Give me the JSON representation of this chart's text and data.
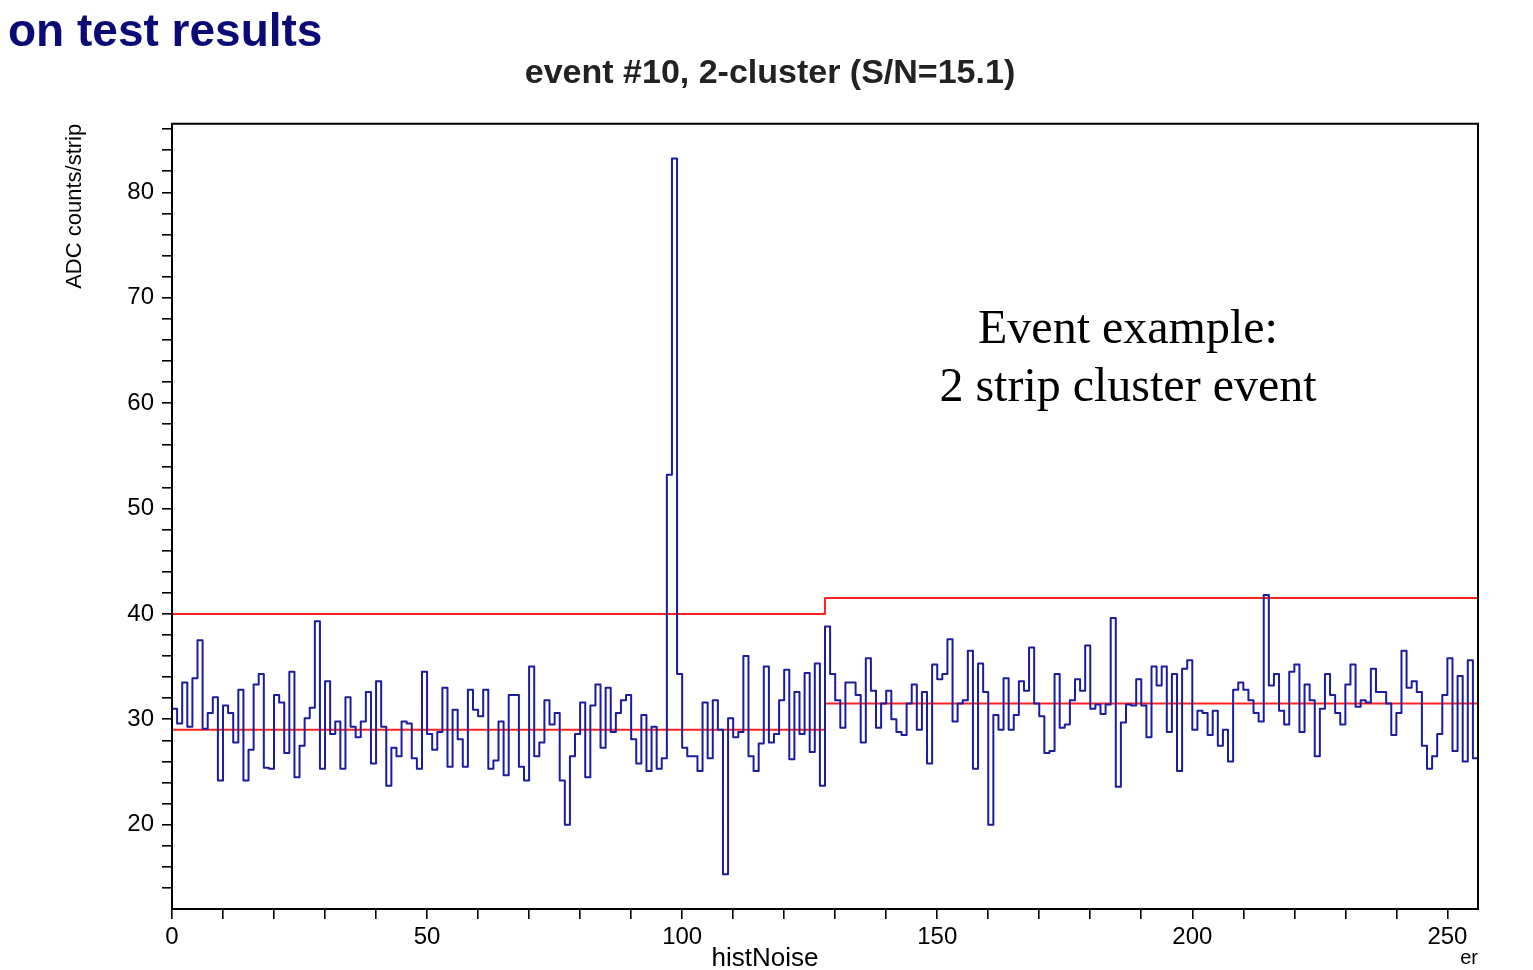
{
  "chart_data": {
    "type": "histogram",
    "title": "event #10, 2-cluster (S/N=15.1)",
    "xlabel": "er",
    "ylabel": "ADC counts/strip",
    "annotations": [
      "on test results",
      "Event example:\n2 strip cluster event",
      "histNoise"
    ],
    "series": [
      {
        "color": "#1c1ca0",
        "bins": [
          0,
          1,
          2,
          3,
          4,
          5,
          6,
          7,
          8,
          9,
          10,
          11,
          12,
          13,
          14,
          15,
          16,
          17,
          18,
          19,
          20,
          21,
          22,
          23,
          24,
          25,
          26,
          27,
          28,
          29,
          30,
          31,
          32,
          33,
          34,
          35,
          36,
          37,
          38,
          39,
          40,
          41,
          42,
          43,
          44,
          45,
          46,
          47,
          48,
          49,
          50,
          51,
          52,
          53,
          54,
          55,
          56,
          57,
          58,
          59,
          60,
          61,
          62,
          63,
          64,
          65,
          66,
          67,
          68,
          69,
          70,
          71,
          72,
          73,
          74,
          75,
          76,
          77,
          78,
          79,
          80,
          81,
          82,
          83,
          84,
          85,
          86,
          87,
          88,
          89,
          90,
          91,
          92,
          93,
          94,
          95,
          96,
          97,
          98,
          99,
          100,
          101,
          102,
          103,
          104,
          105,
          106,
          107,
          108,
          109,
          110,
          111,
          112,
          113,
          114,
          115,
          116,
          117,
          118,
          119,
          120,
          121,
          122,
          123,
          124,
          125,
          126,
          127,
          128,
          129,
          130,
          131,
          132,
          133,
          134,
          135,
          136,
          137,
          138,
          139,
          140,
          141,
          142,
          143,
          144,
          145,
          146,
          147,
          148,
          149,
          150,
          151,
          152,
          153,
          154,
          155,
          156,
          157,
          158,
          159,
          160,
          161,
          162,
          163,
          164,
          165,
          166,
          167,
          168,
          169,
          170,
          171,
          172,
          173,
          174,
          175,
          176,
          177,
          178,
          179,
          180,
          181,
          182,
          183,
          184,
          185,
          186,
          187,
          188,
          189,
          190,
          191,
          192,
          193,
          194,
          195,
          196,
          197,
          198,
          199,
          200,
          201,
          202,
          203,
          204,
          205,
          206,
          207,
          208,
          209,
          210,
          211,
          212,
          213,
          214,
          215,
          216,
          217,
          218,
          219,
          220,
          221,
          222,
          223,
          224,
          225,
          226,
          227,
          228,
          229,
          230,
          231,
          232,
          233,
          234,
          235,
          236,
          237,
          238,
          239,
          240,
          241,
          242,
          243,
          244,
          245,
          246,
          247,
          248,
          249,
          250,
          251,
          252,
          253,
          254,
          255,
          256
        ],
        "values": [
          31.0,
          29.6,
          33.5,
          29.3,
          33.9,
          37.5,
          29.1,
          30.6,
          32.1,
          24.2,
          31.3,
          30.6,
          27.8,
          32.8,
          24.2,
          27.1,
          33.3,
          34.3,
          25.4,
          25.3,
          32.3,
          31.6,
          26.8,
          34.5,
          24.5,
          27.5,
          30.1,
          31.1,
          39.3,
          25.3,
          33.6,
          28.6,
          29.8,
          25.3,
          32.1,
          29.3,
          28.3,
          29.8,
          32.6,
          25.8,
          33.6,
          29.3,
          23.7,
          27.3,
          26.5,
          29.8,
          29.6,
          26.3,
          25.3,
          34.5,
          28.6,
          27.1,
          28.8,
          33.0,
          25.5,
          30.9,
          28.1,
          25.5,
          32.8,
          30.9,
          30.3,
          32.8,
          25.3,
          26.1,
          29.8,
          24.7,
          32.3,
          32.3,
          25.5,
          24.2,
          35.0,
          26.5,
          27.8,
          31.8,
          29.5,
          30.6,
          24.2,
          20.0,
          26.5,
          28.6,
          31.6,
          24.5,
          31.3,
          33.3,
          27.3,
          33.0,
          28.8,
          30.6,
          31.8,
          32.3,
          28.1,
          25.8,
          30.4,
          25.1,
          29.3,
          25.3,
          26.3,
          53.2,
          83.2,
          34.3,
          27.3,
          26.5,
          26.5,
          25.1,
          31.6,
          26.3,
          31.8,
          29.0,
          15.3,
          30.1,
          28.3,
          28.8,
          36.0,
          26.5,
          25.1,
          27.7,
          35.0,
          27.8,
          28.6,
          31.8,
          34.7,
          26.2,
          32.6,
          28.6,
          34.4,
          26.9,
          35.3,
          23.7,
          38.8,
          34.3,
          31.8,
          29.2,
          33.5,
          33.5,
          32.3,
          27.8,
          35.8,
          32.7,
          29.2,
          31.5,
          32.7,
          30.0,
          28.8,
          28.5,
          31.5,
          33.3,
          29.0,
          32.6,
          25.8,
          35.2,
          33.8,
          34.3,
          37.6,
          29.8,
          31.5,
          31.8,
          36.5,
          25.3,
          35.3,
          32.6,
          20.0,
          30.4,
          29.0,
          33.9,
          29.0,
          30.4,
          33.6,
          32.7,
          36.8,
          31.5,
          30.3,
          26.8,
          27.0,
          34.3,
          29.2,
          29.5,
          31.8,
          33.8,
          32.7,
          37.0,
          31.0,
          31.4,
          30.5,
          31.4,
          39.6,
          23.6,
          29.7,
          31.4,
          31.3,
          33.8,
          31.3,
          28.3,
          35.0,
          33.2,
          35.0,
          28.8,
          34.3,
          25.1,
          34.8,
          35.6,
          29.0,
          30.8,
          30.6,
          28.5,
          30.8,
          27.5,
          29.0,
          26.0,
          32.8,
          33.5,
          32.8,
          31.8,
          30.6,
          29.8,
          41.8,
          33.2,
          34.3,
          30.8,
          29.5,
          34.5,
          35.2,
          28.8,
          33.3,
          31.8,
          26.5,
          31.0,
          34.3,
          32.3,
          30.6,
          29.5,
          33.3,
          35.2,
          31.2,
          31.8,
          31.6,
          34.8,
          32.6,
          32.6,
          31.5,
          28.5,
          30.6,
          36.5,
          33.0,
          33.6,
          32.6,
          27.5,
          25.3,
          26.5,
          28.6,
          32.3,
          35.8,
          27.0,
          34.1,
          26.0,
          35.6,
          26.3
        ]
      },
      {
        "type": "step",
        "color": "#ff2020",
        "x": [
          0,
          128,
          256
        ],
        "values": [
          40,
          41.5,
          41.5
        ]
      },
      {
        "type": "step",
        "color": "#ff2020",
        "x": [
          0,
          128,
          256
        ],
        "values": [
          29,
          31.5,
          31.5
        ]
      }
    ],
    "xlim": [
      0,
      256
    ],
    "ylim": [
      12,
      86.5
    ],
    "xticks": [
      0,
      {
        "value": 10,
        "label": null
      },
      {
        "value": 20,
        "label": null
      },
      {
        "value": 30,
        "label": null
      },
      {
        "value": 40,
        "label": null
      },
      50,
      {
        "value": 60,
        "label": null
      },
      {
        "value": 70,
        "label": null
      },
      {
        "value": 80,
        "label": null
      },
      {
        "value": 90,
        "label": null
      },
      100,
      {
        "value": 110,
        "label": null
      },
      {
        "value": 120,
        "label": null
      },
      {
        "value": 130,
        "label": null
      },
      {
        "value": 140,
        "label": null
      },
      150,
      {
        "value": 160,
        "label": null
      },
      {
        "value": 170,
        "label": null
      },
      {
        "value": 180,
        "label": null
      },
      {
        "value": 190,
        "label": null
      },
      200,
      {
        "value": 210,
        "label": null
      },
      {
        "value": 220,
        "label": null
      },
      {
        "value": 230,
        "label": null
      },
      {
        "value": 240,
        "label": null
      },
      250
    ],
    "yticks": [
      {
        "value": 14,
        "label": null
      },
      {
        "value": 16,
        "label": null
      },
      {
        "value": 18,
        "label": null
      },
      20,
      {
        "value": 22,
        "label": null
      },
      {
        "value": 24,
        "label": null
      },
      {
        "value": 26,
        "label": null
      },
      {
        "value": 28,
        "label": null
      },
      30,
      {
        "value": 32,
        "label": null
      },
      {
        "value": 34,
        "label": null
      },
      {
        "value": 36,
        "label": null
      },
      {
        "value": 38,
        "label": null
      },
      40,
      {
        "value": 42,
        "label": null
      },
      {
        "value": 44,
        "label": null
      },
      {
        "value": 46,
        "label": null
      },
      {
        "value": 48,
        "label": null
      },
      50,
      {
        "value": 52,
        "label": null
      },
      {
        "value": 54,
        "label": null
      },
      {
        "value": 56,
        "label": null
      },
      {
        "value": 58,
        "label": null
      },
      60,
      {
        "value": 62,
        "label": null
      },
      {
        "value": 64,
        "label": null
      },
      {
        "value": 66,
        "label": null
      },
      {
        "value": 68,
        "label": null
      },
      70,
      {
        "value": 72,
        "label": null
      },
      {
        "value": 74,
        "label": null
      },
      {
        "value": 76,
        "label": null
      },
      {
        "value": 78,
        "label": null
      },
      80,
      {
        "value": 82,
        "label": null
      },
      {
        "value": 84,
        "label": null
      },
      {
        "value": 86,
        "label": null
      }
    ],
    "grid": false,
    "legend": false
  }
}
